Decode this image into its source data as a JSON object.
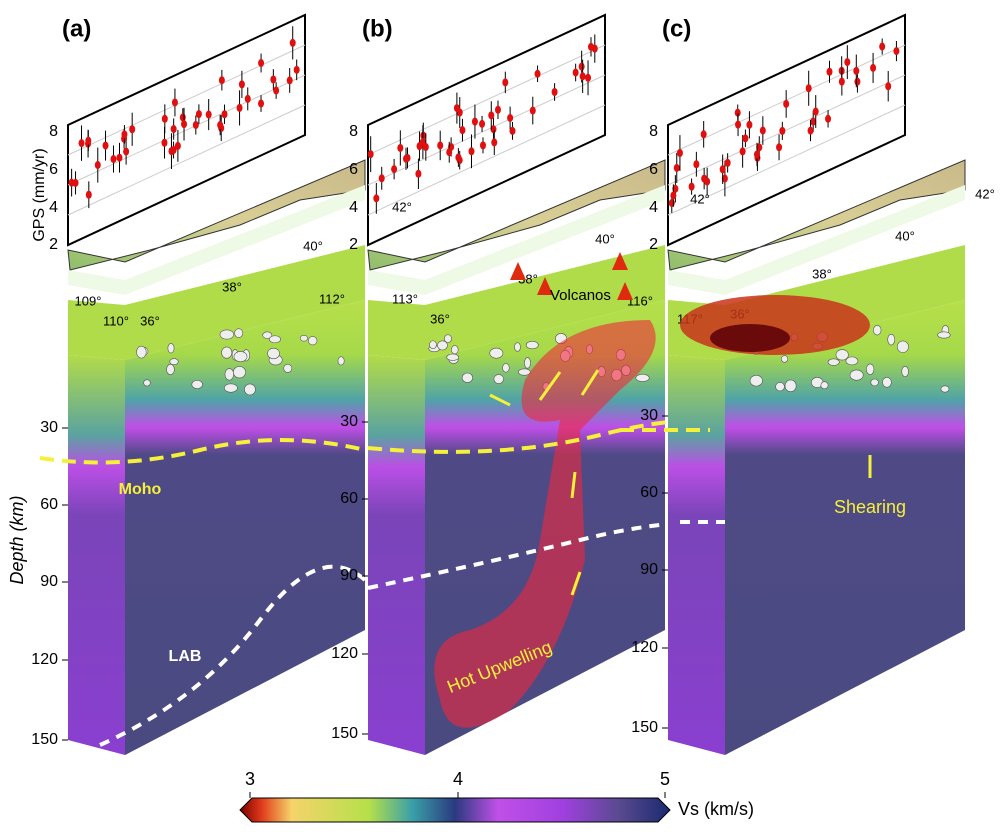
{
  "panels": [
    {
      "label": "(a)",
      "gps_ticks": [
        2,
        4,
        6,
        8
      ],
      "depth_ticks": [
        30,
        60,
        90,
        120,
        150
      ],
      "geo_labels": [
        "109°",
        "110°",
        "36°",
        "38°",
        "40°",
        "112°"
      ],
      "annotations": [
        "Moho",
        "LAB"
      ]
    },
    {
      "label": "(b)",
      "gps_ticks": [
        2,
        4,
        6,
        8
      ],
      "depth_ticks": [
        30,
        60,
        90,
        120,
        150
      ],
      "geo_labels": [
        "113°",
        "36°",
        "38°",
        "40°",
        "42°",
        "116°"
      ],
      "annotations": [
        "Volcanos",
        "Hot Upwelling"
      ]
    },
    {
      "label": "(c)",
      "gps_ticks": [
        2,
        4,
        6,
        8
      ],
      "depth_ticks": [
        30,
        60,
        90,
        120,
        150
      ],
      "geo_labels": [
        "117°",
        "36°",
        "38°",
        "40°",
        "42°",
        "42°"
      ],
      "annotations": [
        "Shearing"
      ]
    }
  ],
  "gps_axis_title": "GPS (mm/yr)",
  "depth_axis_title": "Depth (km)",
  "colorbar": {
    "ticks": [
      3,
      4,
      5
    ],
    "label": "Vs (km/s)"
  }
}
